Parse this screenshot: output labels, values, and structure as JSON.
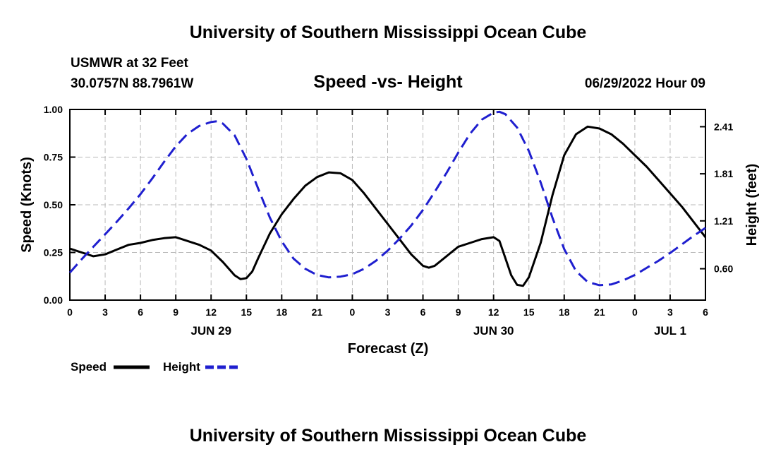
{
  "header": {
    "title": "University of Southern Mississippi Ocean Cube",
    "station": "USMWR at 32 Feet",
    "coords": "30.0757N  88.7961W",
    "datetime": "06/29/2022 Hour 09",
    "footer_title": "University of Southern Mississippi Ocean Cube"
  },
  "chart_data": {
    "type": "line",
    "title": "Speed -vs- Height",
    "xlabel": "Forecast (Z)",
    "ylabel_left": "Speed (Knots)",
    "ylabel_right": "Height (feet)",
    "x_range": [
      0,
      54
    ],
    "x_unit": "hours since 06/29 00Z",
    "xtick_values": [
      0,
      3,
      6,
      9,
      12,
      15,
      18,
      21,
      24,
      27,
      30,
      33,
      36,
      39,
      42,
      45,
      48,
      51,
      54
    ],
    "xtick_labels": [
      "0",
      "3",
      "6",
      "9",
      "12",
      "15",
      "18",
      "21",
      "0",
      "3",
      "6",
      "9",
      "12",
      "15",
      "18",
      "21",
      "0",
      "3",
      "6"
    ],
    "date_labels": [
      {
        "label": "JUN 29",
        "x": 12
      },
      {
        "label": "JUN 30",
        "x": 36
      },
      {
        "label": "JUL 1",
        "x": 51
      }
    ],
    "ylim_left": [
      0,
      1.0
    ],
    "yticks_left": [
      "0.00",
      "0.25",
      "0.50",
      "0.75",
      "1.00"
    ],
    "ylim_right": [
      0.2,
      2.63
    ],
    "yticks_right": [
      {
        "label": "0.60",
        "value": 0.6
      },
      {
        "label": "1.21",
        "value": 1.21
      },
      {
        "label": "1.81",
        "value": 1.81
      },
      {
        "label": "2.41",
        "value": 2.41
      }
    ],
    "grid": true,
    "legend_position": "bottom-left",
    "series": [
      {
        "name": "Speed",
        "axis": "left",
        "color": "#000000",
        "dash": "solid",
        "x": [
          0,
          1,
          2,
          3,
          4,
          5,
          6,
          7,
          8,
          9,
          10,
          11,
          12,
          13,
          14,
          14.5,
          15,
          15.5,
          16,
          17,
          18,
          19,
          20,
          21,
          22,
          23,
          24,
          25,
          26,
          27,
          28,
          29,
          30,
          30.5,
          31,
          32,
          33,
          34,
          35,
          36,
          36.5,
          37,
          37.5,
          38,
          38.5,
          39,
          40,
          41,
          42,
          43,
          44,
          45,
          46,
          47,
          48,
          49,
          50,
          51,
          52,
          53,
          54
        ],
        "values": [
          0.27,
          0.25,
          0.23,
          0.24,
          0.265,
          0.29,
          0.3,
          0.315,
          0.325,
          0.33,
          0.31,
          0.29,
          0.26,
          0.2,
          0.13,
          0.11,
          0.115,
          0.15,
          0.22,
          0.35,
          0.45,
          0.53,
          0.6,
          0.645,
          0.67,
          0.665,
          0.63,
          0.56,
          0.48,
          0.4,
          0.32,
          0.24,
          0.18,
          0.17,
          0.18,
          0.23,
          0.28,
          0.3,
          0.32,
          0.33,
          0.31,
          0.22,
          0.13,
          0.08,
          0.075,
          0.12,
          0.3,
          0.55,
          0.76,
          0.87,
          0.91,
          0.9,
          0.87,
          0.82,
          0.76,
          0.7,
          0.63,
          0.56,
          0.49,
          0.41,
          0.33
        ]
      },
      {
        "name": "Height",
        "axis": "right",
        "color": "#1f1fcf",
        "dash": "dashed",
        "x": [
          0,
          1,
          2,
          3,
          4,
          5,
          6,
          7,
          8,
          9,
          10,
          11,
          12,
          12.5,
          13,
          14,
          15,
          16,
          17,
          18,
          19,
          20,
          21,
          22,
          23,
          24,
          25,
          26,
          27,
          28,
          29,
          30,
          31,
          32,
          33,
          34,
          35,
          36,
          36.5,
          37,
          38,
          39,
          40,
          41,
          42,
          43,
          44,
          45,
          46,
          47,
          48,
          49,
          50,
          51,
          52,
          53,
          54
        ],
        "values": [
          0.55,
          0.72,
          0.88,
          1.04,
          1.2,
          1.37,
          1.55,
          1.75,
          1.96,
          2.16,
          2.32,
          2.42,
          2.47,
          2.48,
          2.45,
          2.3,
          2.0,
          1.62,
          1.25,
          0.95,
          0.73,
          0.6,
          0.52,
          0.49,
          0.5,
          0.53,
          0.6,
          0.7,
          0.83,
          0.98,
          1.15,
          1.35,
          1.58,
          1.82,
          2.08,
          2.32,
          2.5,
          2.59,
          2.6,
          2.57,
          2.4,
          2.1,
          1.7,
          1.25,
          0.85,
          0.57,
          0.43,
          0.39,
          0.4,
          0.45,
          0.52,
          0.61,
          0.7,
          0.8,
          0.91,
          1.02,
          1.12
        ]
      }
    ]
  }
}
